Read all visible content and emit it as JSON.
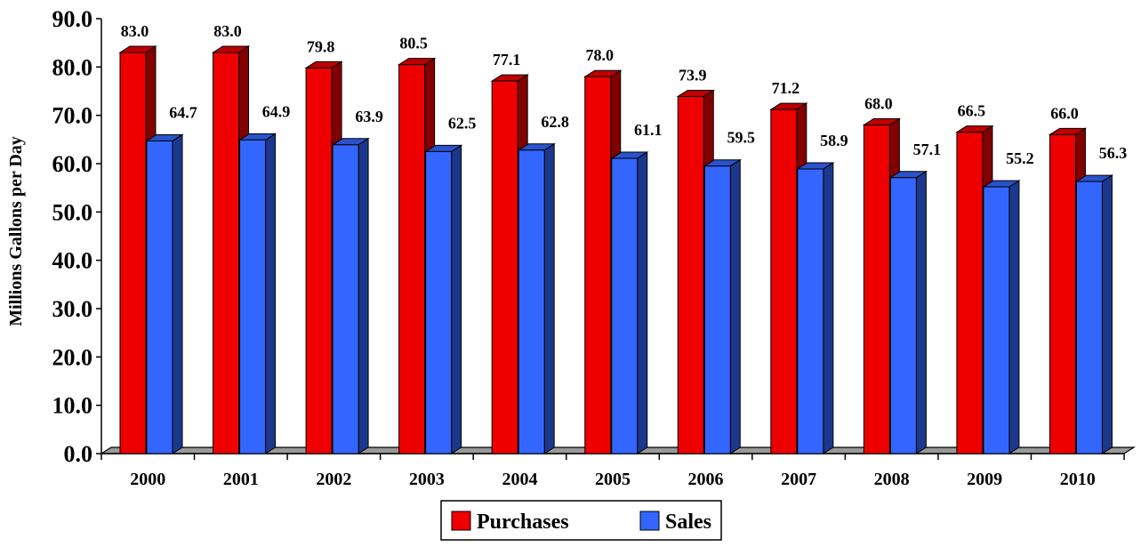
{
  "chart_data": {
    "type": "bar",
    "categories": [
      "2000",
      "2001",
      "2002",
      "2003",
      "2004",
      "2005",
      "2006",
      "2007",
      "2008",
      "2009",
      "2010"
    ],
    "series": [
      {
        "name": "Purchases",
        "values": [
          83.0,
          83.0,
          79.8,
          80.5,
          77.1,
          78.0,
          73.9,
          71.2,
          68.0,
          66.5,
          66.0
        ],
        "color": "#ee0000"
      },
      {
        "name": "Sales",
        "values": [
          64.7,
          64.9,
          63.9,
          62.5,
          62.8,
          61.1,
          59.5,
          58.9,
          57.1,
          55.2,
          56.3
        ],
        "color": "#3366ff"
      }
    ],
    "title": "",
    "xlabel": "",
    "ylabel": "Millions Gallons per Day",
    "ylim": [
      0,
      90
    ],
    "yticks": [
      "0.0",
      "10.0",
      "20.0",
      "30.0",
      "40.0",
      "50.0",
      "60.0",
      "70.0",
      "80.0",
      "90.0"
    ],
    "bar_style": "3d",
    "grid": false,
    "legend": "bottom-center",
    "data_labels": true
  }
}
